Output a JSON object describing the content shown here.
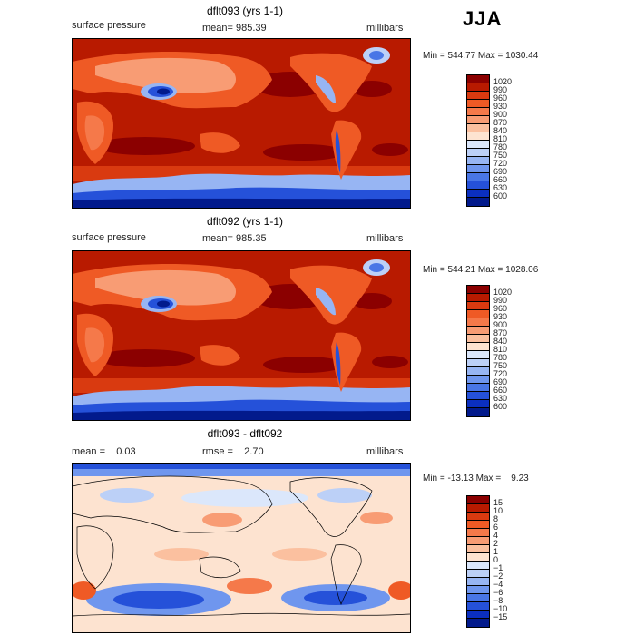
{
  "header": {
    "season": "JJA"
  },
  "panels": [
    {
      "title": "dflt093 (yrs 1-1)",
      "left_label": "surface pressure",
      "center_label": "mean= 985.39",
      "right_label": "millibars",
      "minmax": "Min = 544.77 Max = 1030.44",
      "map_field": "absolute"
    },
    {
      "title": "dflt092 (yrs 1-1)",
      "left_label": "surface pressure",
      "center_label": "mean= 985.35",
      "right_label": "millibars",
      "minmax": "Min = 544.21 Max = 1028.06",
      "map_field": "absolute"
    },
    {
      "title": "dflt093 - dflt092",
      "left_label": "mean =    0.03",
      "center_label": "rmse =    2.70",
      "right_label": "millibars",
      "minmax": "Min = -13.13 Max =    9.23",
      "map_field": "difference"
    }
  ],
  "colorbars": {
    "absolute": {
      "levels": [
        "1020",
        "990",
        "960",
        "930",
        "900",
        "870",
        "840",
        "810",
        "780",
        "750",
        "720",
        "690",
        "660",
        "630",
        "600"
      ],
      "colors": [
        "#8b0000",
        "#b81a00",
        "#d93a10",
        "#ef5a25",
        "#f5794a",
        "#f89c74",
        "#fbc09f",
        "#fde3d0",
        "#dbe7fb",
        "#bcd0f7",
        "#97b5f3",
        "#6f96ee",
        "#4976e6",
        "#2551d9",
        "#0b2fc0",
        "#021a8c"
      ]
    },
    "difference": {
      "levels": [
        "15",
        "10",
        "8",
        "6",
        "4",
        "2",
        "1",
        "0",
        "−1",
        "−2",
        "−4",
        "−6",
        "−8",
        "−10",
        "−15"
      ],
      "colors": [
        "#8b0000",
        "#b81a00",
        "#d93a10",
        "#ef5a25",
        "#f5794a",
        "#f89c74",
        "#fbc09f",
        "#fde3d0",
        "#dbe7fb",
        "#bcd0f7",
        "#97b5f3",
        "#6f96ee",
        "#4976e6",
        "#2551d9",
        "#0b2fc0",
        "#021a8c"
      ]
    }
  },
  "chart_data": [
    {
      "type": "heatmap",
      "title": "dflt093 (yrs 1-1)",
      "variable": "surface pressure",
      "units": "millibars",
      "season": "JJA",
      "mean": 985.39,
      "min": 544.77,
      "max": 1030.44,
      "contour_levels": [
        600,
        630,
        660,
        690,
        720,
        750,
        780,
        810,
        840,
        870,
        900,
        930,
        960,
        990,
        1020
      ]
    },
    {
      "type": "heatmap",
      "title": "dflt092 (yrs 1-1)",
      "variable": "surface pressure",
      "units": "millibars",
      "season": "JJA",
      "mean": 985.35,
      "min": 544.21,
      "max": 1028.06,
      "contour_levels": [
        600,
        630,
        660,
        690,
        720,
        750,
        780,
        810,
        840,
        870,
        900,
        930,
        960,
        990,
        1020
      ]
    },
    {
      "type": "heatmap",
      "title": "dflt093 - dflt092",
      "units": "millibars",
      "season": "JJA",
      "mean": 0.03,
      "rmse": 2.7,
      "min": -13.13,
      "max": 9.23,
      "contour_levels": [
        -15,
        -10,
        -8,
        -6,
        -4,
        -2,
        -1,
        0,
        1,
        2,
        4,
        6,
        8,
        10,
        15
      ]
    }
  ]
}
